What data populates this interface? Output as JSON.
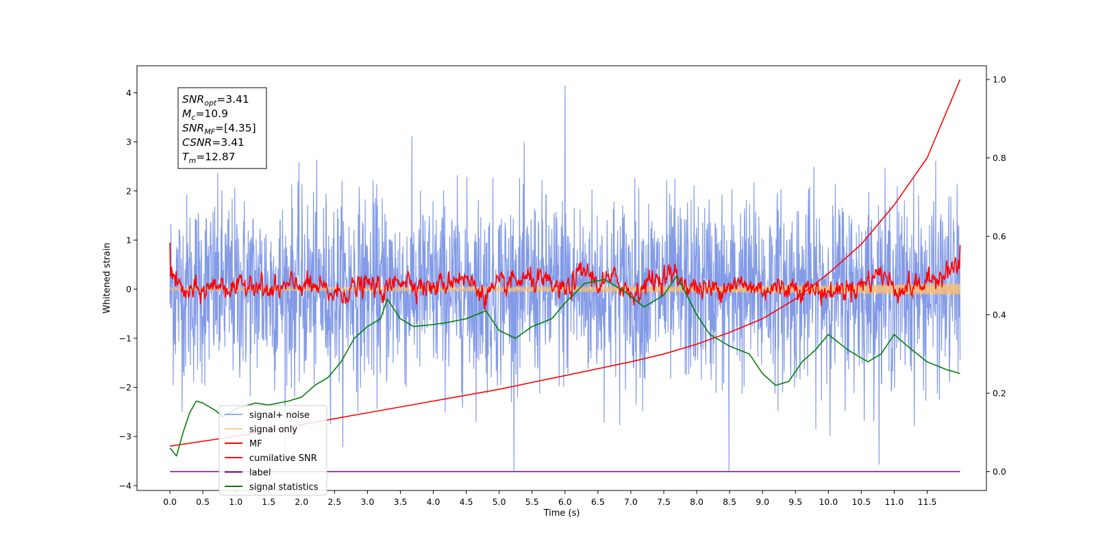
{
  "chart_data": {
    "type": "line",
    "xlabel": "Time (s)",
    "ylabel": "Whitened strain",
    "xlim": [
      -0.5,
      12.4
    ],
    "ylim": [
      -4.1,
      4.55
    ],
    "y2lim": [
      -0.048,
      1.035
    ],
    "xticks": [
      "0.0",
      "0.5",
      "1.0",
      "1.5",
      "2.0",
      "2.5",
      "3.0",
      "3.5",
      "4.0",
      "4.5",
      "5.0",
      "5.5",
      "6.0",
      "6.5",
      "7.0",
      "7.5",
      "8.0",
      "8.5",
      "9.0",
      "9.5",
      "10.0",
      "10.5",
      "11.0",
      "11.5"
    ],
    "yticks": [
      "−4",
      "−3",
      "−2",
      "−1",
      "0",
      "1",
      "2",
      "3",
      "4"
    ],
    "y2ticks": [
      "0.0",
      "0.2",
      "0.4",
      "0.6",
      "0.8",
      "1.0"
    ],
    "legend_position": "lower left",
    "annotation": {
      "lines": [
        {
          "main": "SNR",
          "sub": "opt",
          "rest": "=3.41"
        },
        {
          "main": "M",
          "sub": "c",
          "rest": "=10.9"
        },
        {
          "main": "SNR",
          "sub": "MF",
          "rest": "=[4.35]"
        },
        {
          "main": "CSNR",
          "sub": "",
          "rest": "=3.41"
        },
        {
          "main": "T",
          "sub": "m",
          "rest": "=12.87"
        }
      ]
    },
    "series": [
      {
        "name": "signal+ noise",
        "axis": "left",
        "color": "#7b95e6",
        "style": "noise",
        "envelope": {
          "x": [
            0,
            12.0
          ],
          "std": 0.95,
          "spikes_max": 4.15,
          "spikes_min": -3.7
        }
      },
      {
        "name": "signal only",
        "axis": "left",
        "color": "#f5c07a",
        "style": "chirp",
        "x": [
          0,
          2,
          4,
          6,
          8,
          10,
          11,
          12
        ],
        "amplitude": [
          0.03,
          0.035,
          0.04,
          0.05,
          0.06,
          0.08,
          0.1,
          0.12
        ]
      },
      {
        "name": "MF",
        "axis": "left",
        "color": "#ff0000",
        "style": "fluctuating",
        "x": [
          0.0,
          0.05,
          0.2,
          0.5,
          0.75,
          1.0,
          1.25,
          1.5,
          2.0,
          2.5,
          3.0,
          3.3,
          3.5,
          4.0,
          4.4,
          4.8,
          5.2,
          5.5,
          6.0,
          6.3,
          6.5,
          6.8,
          7.0,
          7.3,
          7.6,
          7.9,
          8.2,
          8.5,
          9.0,
          9.5,
          10.0,
          10.5,
          10.8,
          11.0,
          11.5,
          11.8,
          12.0
        ],
        "y": [
          0.95,
          0.6,
          -0.05,
          0.0,
          0.35,
          0.0,
          0.45,
          -0.05,
          0.3,
          -0.1,
          0.25,
          0.0,
          0.55,
          0.1,
          0.6,
          -0.1,
          0.35,
          0.45,
          0.0,
          0.8,
          0.3,
          0.45,
          -0.1,
          0.4,
          0.65,
          0.2,
          0.05,
          0.3,
          0.1,
          0.2,
          -0.05,
          0.25,
          0.75,
          0.1,
          0.3,
          0.85,
          0.9
        ]
      },
      {
        "name": "cumilative SNR",
        "axis": "right",
        "color": "#ff0000",
        "style": "line",
        "x": [
          0.0,
          1.0,
          2.0,
          3.0,
          4.0,
          5.0,
          6.0,
          7.0,
          7.5,
          8.0,
          8.5,
          9.0,
          9.5,
          10.0,
          10.5,
          11.0,
          11.5,
          12.0
        ],
        "y": [
          0.065,
          0.09,
          0.12,
          0.15,
          0.18,
          0.21,
          0.245,
          0.28,
          0.3,
          0.325,
          0.355,
          0.39,
          0.44,
          0.505,
          0.58,
          0.68,
          0.8,
          1.0
        ]
      },
      {
        "name": "label",
        "axis": "right",
        "color": "#800080",
        "style": "line",
        "x": [
          0.0,
          12.0
        ],
        "y": [
          0.0,
          0.0
        ]
      },
      {
        "name": "signal statistics",
        "axis": "right",
        "color": "#008000",
        "style": "line",
        "x": [
          0.0,
          0.1,
          0.2,
          0.3,
          0.4,
          0.5,
          0.7,
          0.8,
          1.0,
          1.3,
          1.5,
          1.8,
          2.0,
          2.2,
          2.4,
          2.6,
          2.8,
          3.0,
          3.2,
          3.3,
          3.5,
          3.7,
          4.0,
          4.2,
          4.5,
          4.8,
          5.0,
          5.25,
          5.5,
          5.8,
          6.0,
          6.3,
          6.6,
          6.9,
          7.2,
          7.5,
          7.7,
          8.0,
          8.2,
          8.5,
          8.8,
          9.0,
          9.2,
          9.4,
          9.6,
          9.8,
          10.0,
          10.3,
          10.6,
          10.8,
          11.0,
          11.2,
          11.5,
          11.8,
          12.0
        ],
        "y": [
          0.06,
          0.04,
          0.1,
          0.15,
          0.18,
          0.175,
          0.155,
          0.14,
          0.16,
          0.175,
          0.17,
          0.18,
          0.19,
          0.22,
          0.24,
          0.28,
          0.34,
          0.37,
          0.39,
          0.44,
          0.39,
          0.37,
          0.375,
          0.38,
          0.39,
          0.41,
          0.36,
          0.34,
          0.37,
          0.39,
          0.43,
          0.48,
          0.49,
          0.46,
          0.42,
          0.45,
          0.5,
          0.4,
          0.35,
          0.32,
          0.3,
          0.25,
          0.22,
          0.23,
          0.28,
          0.31,
          0.35,
          0.31,
          0.28,
          0.3,
          0.35,
          0.32,
          0.28,
          0.26,
          0.25
        ]
      }
    ]
  }
}
